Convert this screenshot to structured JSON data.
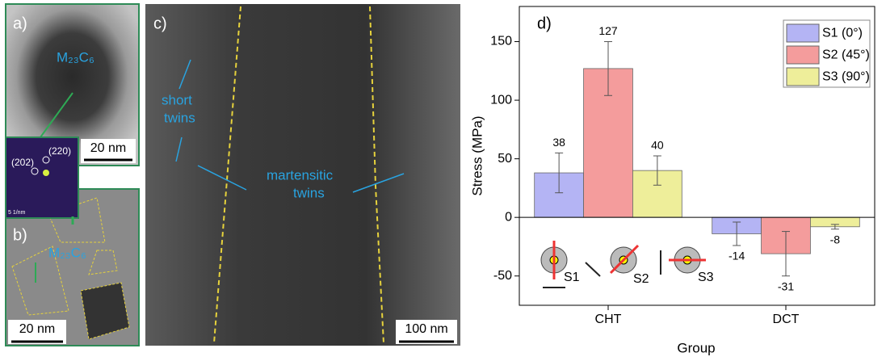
{
  "panels": {
    "a": {
      "label": "a)",
      "phase": "M₂₃C₆",
      "scale": "20 nm"
    },
    "saed": {
      "spot1": "(220)",
      "spot2": "(202)",
      "scale": "5 1/nm"
    },
    "b": {
      "label": "b)",
      "phase": "M₂₃C₆",
      "scale": "20 nm"
    },
    "c": {
      "label": "c)",
      "note1": "short",
      "note2": "twins",
      "note3": "martensitic",
      "note4": "twins",
      "scale": "100 nm"
    }
  },
  "chart_data": {
    "type": "bar",
    "panel_label": "d)",
    "x_label": "Group",
    "y_label": "Stress (MPa)",
    "categories": [
      "CHT",
      "DCT"
    ],
    "series": [
      {
        "name": "S1 (0°)",
        "color": "#b4b4f4",
        "values": [
          38,
          -14
        ],
        "errors": [
          17,
          10
        ]
      },
      {
        "name": "S2 (45°)",
        "color": "#f49c9c",
        "values": [
          127,
          -31
        ],
        "errors": [
          23,
          19
        ]
      },
      {
        "name": "S3 (90°)",
        "color": "#eeee9a",
        "values": [
          40,
          -8
        ],
        "errors": [
          12.5,
          2
        ]
      }
    ],
    "ylim": [
      -75,
      180
    ],
    "yticks": [
      -50,
      0,
      50,
      100,
      150
    ],
    "legend": "upper right",
    "schematic_labels": [
      "S1",
      "S2",
      "S3"
    ]
  }
}
